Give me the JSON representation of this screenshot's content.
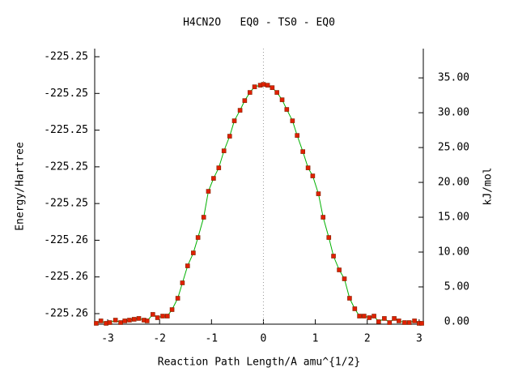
{
  "chart_data": {
    "type": "line",
    "title": "H4CN2O   EQ0 - TS0 - EQ0",
    "xlabel": "Reaction Path Length/A amu^{1/2}",
    "ylabel": "Energy/Hartree",
    "y2label": "kJ/mol",
    "xlim": [
      -3.25,
      3.08
    ],
    "xticks": [
      -3,
      -2,
      -1,
      0,
      1,
      2,
      3
    ],
    "ylim": [
      -225.259574,
      -225.244558
    ],
    "yticks": [
      {
        "value": -225.259,
        "label": "-225.26"
      },
      {
        "value": -225.257,
        "label": "-225.26"
      },
      {
        "value": -225.255,
        "label": "-225.26"
      },
      {
        "value": -225.253,
        "label": "-225.25"
      },
      {
        "value": -225.251,
        "label": "-225.25"
      },
      {
        "value": -225.249,
        "label": "-225.25"
      },
      {
        "value": -225.247,
        "label": "-225.25"
      },
      {
        "value": -225.245,
        "label": "-225.25"
      }
    ],
    "y2lim": [
      -0.35,
      39.2
    ],
    "y2ticks": [
      {
        "value": 0,
        "label": "0.00"
      },
      {
        "value": 5,
        "label": "5.00"
      },
      {
        "value": 10,
        "label": "10.00"
      },
      {
        "value": 15,
        "label": "15.00"
      },
      {
        "value": 20,
        "label": "20.00"
      },
      {
        "value": 25,
        "label": "25.00"
      },
      {
        "value": 30,
        "label": "30.00"
      },
      {
        "value": 35,
        "label": "35.00"
      }
    ],
    "vline_x": 0,
    "line_color": "#00b000",
    "marker_color": "#e02000",
    "series": [
      {
        "axis": "y2",
        "x": [
          -3.22,
          -3.13,
          -3.03,
          -2.96,
          -2.85,
          -2.75,
          -2.67,
          -2.58,
          -2.49,
          -2.4,
          -2.3,
          -2.24,
          -2.13,
          -2.04,
          -1.94,
          -1.85,
          -1.76,
          -1.65,
          -1.56,
          -1.46,
          -1.35,
          -1.26,
          -1.15,
          -1.06,
          -0.96,
          -0.86,
          -0.76,
          -0.65,
          -0.56,
          -0.45,
          -0.36,
          -0.26,
          -0.17,
          -0.06,
          0,
          0.08,
          0.17,
          0.26,
          0.36,
          0.45,
          0.56,
          0.65,
          0.76,
          0.86,
          0.95,
          1.06,
          1.15,
          1.26,
          1.35,
          1.46,
          1.56,
          1.66,
          1.76,
          1.85,
          1.94,
          2.04,
          2.13,
          2.22,
          2.33,
          2.43,
          2.52,
          2.61,
          2.72,
          2.81,
          2.91,
          3.0,
          3.05
        ],
        "values": [
          -0.23,
          0.12,
          -0.23,
          -0.12,
          0.23,
          -0.12,
          0.12,
          0.23,
          0.35,
          0.47,
          0.23,
          0.12,
          1.05,
          0.58,
          0.81,
          0.81,
          1.74,
          3.37,
          5.58,
          8.02,
          9.88,
          12.09,
          15.0,
          18.72,
          20.58,
          22.09,
          24.53,
          26.63,
          28.84,
          30.35,
          31.74,
          32.91,
          33.72,
          33.95,
          34.07,
          33.95,
          33.6,
          32.91,
          31.86,
          30.47,
          28.84,
          26.74,
          24.42,
          22.09,
          20.93,
          18.37,
          15.0,
          12.09,
          9.42,
          7.44,
          6.16,
          3.37,
          1.86,
          0.81,
          0.81,
          0.58,
          0.81,
          0.0,
          0.47,
          -0.12,
          0.47,
          0.12,
          -0.12,
          -0.12,
          0.12,
          -0.23,
          -0.23
        ]
      }
    ]
  }
}
